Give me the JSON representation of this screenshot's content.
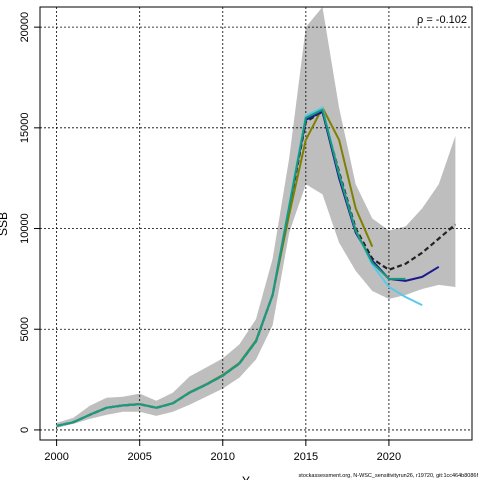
{
  "chart_data": {
    "type": "line",
    "title": "",
    "xlabel": "Y",
    "ylabel": "SSB",
    "xlim": [
      1999,
      2025
    ],
    "ylim": [
      -500,
      21000
    ],
    "x_ticks": [
      2000,
      2005,
      2010,
      2015,
      2020
    ],
    "y_ticks": [
      0,
      5000,
      10000,
      15000,
      20000
    ],
    "grid": true,
    "annotation": "ρ = -0.102",
    "credit": "stockassessment.org, N-WSC_sensitivityrun26, r19720, git:1cc464b8086f",
    "confidence_band": {
      "x": [
        2000,
        2001,
        2002,
        2003,
        2004,
        2005,
        2006,
        2007,
        2008,
        2009,
        2010,
        2011,
        2012,
        2013,
        2014,
        2015,
        2016,
        2017,
        2018,
        2019,
        2020,
        2021,
        2022,
        2023,
        2024
      ],
      "upper": [
        350,
        600,
        1200,
        1600,
        1650,
        1800,
        1450,
        1850,
        2650,
        3100,
        3550,
        4250,
        5500,
        8500,
        13500,
        20000,
        21000,
        16000,
        12200,
        10500,
        9900,
        10100,
        11000,
        12200,
        14600
      ],
      "lower": [
        100,
        300,
        550,
        750,
        900,
        900,
        700,
        900,
        1250,
        1650,
        2050,
        2600,
        3500,
        5200,
        9800,
        12200,
        11700,
        9300,
        7900,
        6900,
        6500,
        6700,
        7000,
        7200,
        7100
      ]
    },
    "series": [
      {
        "color": "#222222",
        "dashed": true,
        "x": [
          2000,
          2001,
          2002,
          2003,
          2004,
          2005,
          2006,
          2007,
          2008,
          2009,
          2010,
          2011,
          2012,
          2013,
          2014,
          2015,
          2016,
          2017,
          2018,
          2019,
          2020,
          2021,
          2022,
          2023,
          2024
        ],
        "y": [
          200,
          380,
          750,
          1100,
          1220,
          1280,
          1100,
          1320,
          1850,
          2250,
          2700,
          3300,
          4400,
          6700,
          11000,
          15300,
          15800,
          12800,
          10000,
          8500,
          7950,
          8250,
          8800,
          9500,
          10200
        ]
      },
      {
        "color": "#808000",
        "dashed": false,
        "x": [
          2000,
          2001,
          2002,
          2003,
          2004,
          2005,
          2006,
          2007,
          2008,
          2009,
          2010,
          2011,
          2012,
          2013,
          2014,
          2015,
          2016,
          2017,
          2018,
          2019
        ],
        "y": [
          200,
          380,
          760,
          1100,
          1230,
          1290,
          1110,
          1330,
          1870,
          2270,
          2730,
          3330,
          4450,
          6700,
          10700,
          14400,
          16000,
          14400,
          11000,
          9100
        ]
      },
      {
        "color": "#1a1a8c",
        "dashed": false,
        "x": [
          2000,
          2001,
          2002,
          2003,
          2004,
          2005,
          2006,
          2007,
          2008,
          2009,
          2010,
          2011,
          2012,
          2013,
          2014,
          2015,
          2016,
          2017,
          2018,
          2019,
          2020,
          2021,
          2022,
          2023
        ],
        "y": [
          200,
          380,
          750,
          1100,
          1220,
          1280,
          1100,
          1320,
          1850,
          2250,
          2700,
          3300,
          4400,
          6700,
          11100,
          15400,
          15800,
          12500,
          9800,
          8400,
          7500,
          7400,
          7600,
          8100
        ]
      },
      {
        "color": "#5cc8e8",
        "dashed": false,
        "x": [
          2000,
          2001,
          2002,
          2003,
          2004,
          2005,
          2006,
          2007,
          2008,
          2009,
          2010,
          2011,
          2012,
          2013,
          2014,
          2015,
          2016,
          2017,
          2018,
          2019,
          2020,
          2021,
          2022
        ],
        "y": [
          200,
          380,
          750,
          1100,
          1220,
          1280,
          1100,
          1320,
          1850,
          2250,
          2700,
          3300,
          4400,
          6700,
          11200,
          15600,
          16000,
          12700,
          9900,
          8200,
          7100,
          6600,
          6200
        ]
      },
      {
        "color": "#1a9a7a",
        "dashed": false,
        "x": [
          2000,
          2001,
          2002,
          2003,
          2004,
          2005,
          2006,
          2007,
          2008,
          2009,
          2010,
          2011,
          2012,
          2013,
          2014,
          2015,
          2016,
          2017,
          2018,
          2019,
          2020,
          2021
        ],
        "y": [
          200,
          380,
          750,
          1100,
          1220,
          1280,
          1100,
          1320,
          1850,
          2250,
          2700,
          3300,
          4400,
          6700,
          11100,
          15500,
          15900,
          12700,
          9900,
          8300,
          7500,
          7500
        ]
      }
    ]
  }
}
